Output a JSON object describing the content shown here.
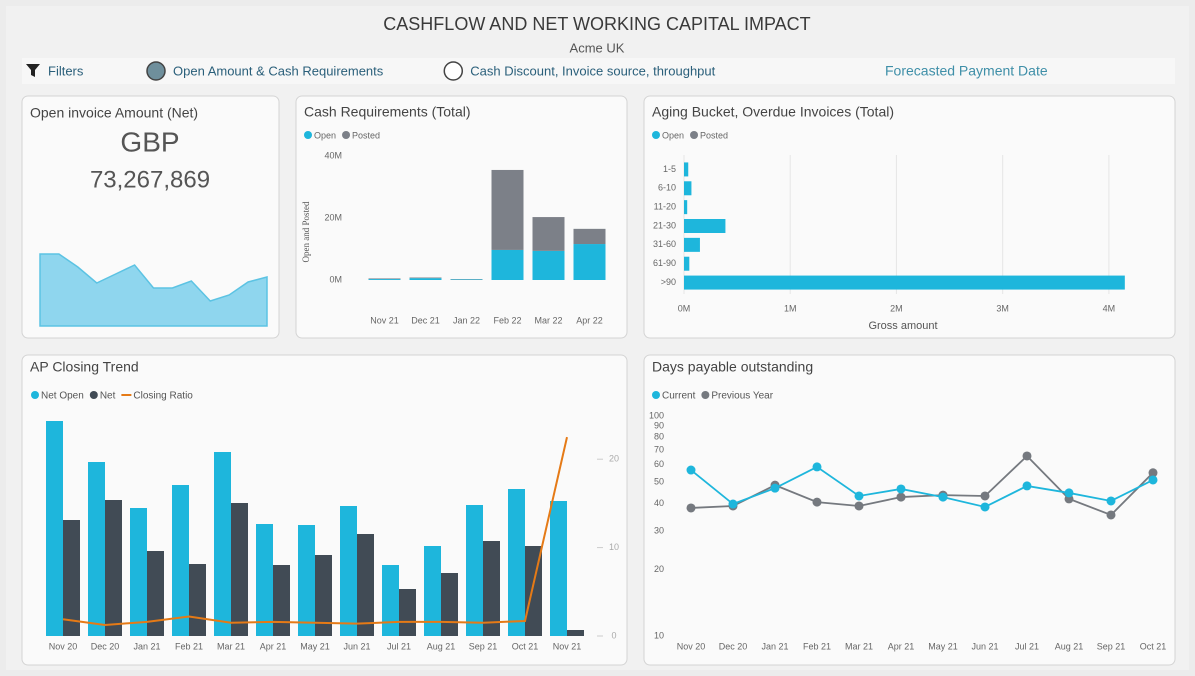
{
  "header": {
    "title": "CASHFLOW AND NET WORKING CAPITAL IMPACT",
    "subtitle": "Acme UK"
  },
  "filters": {
    "label": "Filters",
    "options": [
      {
        "label": "Open Amount & Cash Requirements",
        "selected": true
      },
      {
        "label": "Cash Discount, Invoice source, throughput",
        "selected": false
      }
    ],
    "date_label": "Forecasted Payment Date"
  },
  "kpi": {
    "title": "Open invoice Amount (Net)",
    "currency": "GBP",
    "value": "73,267,869"
  },
  "chart_data": [
    {
      "type": "area",
      "color": "#8fd6ee",
      "line_color": "#5cc3e3",
      "values": [
        72,
        72,
        59,
        43,
        52,
        61,
        38,
        38,
        45,
        25,
        31,
        44,
        49
      ],
      "ylim": [
        0,
        80
      ]
    },
    {
      "type": "bar",
      "stacked": true,
      "title": "Cash Requirements (Total)",
      "y_label": "Open and Posted",
      "categories": [
        "Nov 21",
        "Dec 21",
        "Jan 22",
        "Feb 22",
        "Mar 22",
        "Apr 22"
      ],
      "series": [
        {
          "name": "Open",
          "color": "#1eb6dc",
          "values": [
            0.3,
            0.6,
            0.2,
            9.7,
            9.4,
            11.6
          ]
        },
        {
          "name": "Posted",
          "color": "#7c8088",
          "values": [
            0.2,
            0.2,
            0.1,
            25.8,
            10.9,
            4.9
          ]
        }
      ],
      "ylim": [
        0,
        44
      ],
      "yticks": [
        {
          "value": 0,
          "label": "0M"
        },
        {
          "value": 20,
          "label": "20M"
        },
        {
          "value": 40,
          "label": "40M"
        }
      ]
    },
    {
      "type": "bar",
      "orientation": "horizontal",
      "title": "Aging Bucket, Overdue Invoices (Total)",
      "x_label": "Gross amount",
      "categories": [
        "1-5",
        "6-10",
        "11-20",
        "21-30",
        "31-60",
        "61-90",
        ">90"
      ],
      "series": [
        {
          "name": "Open",
          "color": "#1eb6dc",
          "values": [
            0.04,
            0.07,
            0.03,
            0.39,
            0.15,
            0.05,
            4.15
          ]
        },
        {
          "name": "Posted",
          "color": "#7c8088",
          "values": [
            null,
            null,
            null,
            null,
            null,
            null,
            null
          ]
        }
      ],
      "xlim": [
        0,
        4.5
      ],
      "xticks": [
        {
          "value": 0,
          "label": "0M"
        },
        {
          "value": 1,
          "label": "1M"
        },
        {
          "value": 2,
          "label": "2M"
        },
        {
          "value": 3,
          "label": "3M"
        },
        {
          "value": 4,
          "label": "4M"
        }
      ],
      "grid": true
    },
    {
      "type": "combo",
      "title": "AP Closing Trend",
      "categories": [
        "Nov 20",
        "Dec 20",
        "Jan 21",
        "Feb 21",
        "Mar 21",
        "Apr 21",
        "May 21",
        "Jun 21",
        "Jul 21",
        "Aug 21",
        "Sep 21",
        "Oct 21",
        "Nov 21"
      ],
      "series": [
        {
          "name": "Net Open",
          "type": "bar",
          "color": "#1eb6dc",
          "values": [
            215,
            174,
            128,
            151,
            184,
            112,
            111,
            130,
            71,
            90,
            131,
            147,
            135
          ]
        },
        {
          "name": "Net",
          "type": "bar",
          "color": "#414b55",
          "values": [
            116,
            136,
            85,
            72,
            133,
            71,
            81,
            102,
            47,
            63,
            95,
            90,
            6
          ]
        },
        {
          "name": "Closing Ratio",
          "type": "line",
          "axis": "y2",
          "color": "#e57a16",
          "values": [
            1.9,
            1.25,
            1.6,
            2.2,
            1.5,
            1.6,
            1.5,
            1.4,
            1.6,
            1.6,
            1.5,
            1.7,
            22.5
          ]
        }
      ],
      "ylim": [
        0,
        221
      ],
      "y2lim": [
        0,
        25
      ],
      "y2ticks": [
        0,
        10,
        20
      ]
    },
    {
      "type": "line",
      "title": "Days payable outstanding",
      "log_scale": true,
      "categories": [
        "Nov 20",
        "Dec 20",
        "Jan 21",
        "Feb 21",
        "Mar 21",
        "Apr 21",
        "May 21",
        "Jun 21",
        "Jul 21",
        "Aug 21",
        "Sep 21",
        "Oct 21"
      ],
      "series": [
        {
          "name": "Current",
          "color": "#1eb6dc",
          "values": [
            56.8,
            39.8,
            47,
            58.7,
            43.3,
            46.6,
            42.8,
            38.6,
            48.1,
            44.7,
            41.1,
            51.2
          ]
        },
        {
          "name": "Previous Year",
          "color": "#75797f",
          "values": [
            38.2,
            39,
            48.5,
            40.6,
            39,
            42.8,
            43.7,
            43.3,
            65.8,
            42,
            35.5,
            55.2
          ]
        }
      ],
      "ylim": [
        10,
        100
      ],
      "yticks": [
        10,
        20,
        30,
        40,
        50,
        60,
        70,
        80,
        90,
        100
      ]
    }
  ]
}
